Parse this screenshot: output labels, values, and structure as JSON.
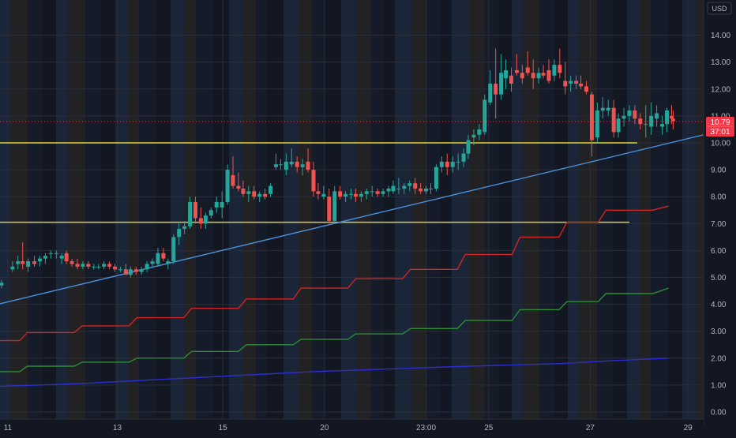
{
  "currency_label": "USD",
  "price_badge": {
    "price": "10.79",
    "countdown": "37:01",
    "color": "#f23645"
  },
  "colors": {
    "background": "#131722",
    "up": "#26a69a",
    "down": "#ef5350",
    "support": "#e3d936",
    "trend": "#4a90d9",
    "band_red": "#d12525",
    "band_green": "#2e8b3a",
    "band_blue": "#2b2fd0",
    "axis_text": "#b2b5be"
  },
  "chart_data": {
    "type": "candlestick",
    "ylim": [
      -0.25,
      14.85
    ],
    "xlim": [
      0.0,
      86.0
    ],
    "y_ticks": [
      "0.00",
      "1.00",
      "2.00",
      "3.00",
      "4.00",
      "5.00",
      "6.00",
      "7.00",
      "8.00",
      "9.00",
      "10.00",
      "11.00",
      "12.00",
      "13.00",
      "14.00"
    ],
    "x_ticks": [
      {
        "x": 1,
        "label": "11"
      },
      {
        "x": 15,
        "label": "13"
      },
      {
        "x": 28.5,
        "label": "15"
      },
      {
        "x": 41.5,
        "label": "20"
      },
      {
        "x": 54.5,
        "label": "23:00"
      },
      {
        "x": 62.5,
        "label": "25"
      },
      {
        "x": 75.5,
        "label": "27"
      },
      {
        "x": 88,
        "label": "29"
      }
    ],
    "candles": [
      [
        0.2,
        4.7,
        4.9,
        4.6,
        4.8
      ],
      [
        1.6,
        5.3,
        5.6,
        5.2,
        5.4
      ],
      [
        2.3,
        5.5,
        5.8,
        5.3,
        5.6
      ],
      [
        2.9,
        5.6,
        6.3,
        5.3,
        5.5
      ],
      [
        3.6,
        5.4,
        5.7,
        5.2,
        5.6
      ],
      [
        4.4,
        5.6,
        5.8,
        5.4,
        5.5
      ],
      [
        5.1,
        5.6,
        5.8,
        5.4,
        5.7
      ],
      [
        5.8,
        5.7,
        5.9,
        5.5,
        5.8
      ],
      [
        6.5,
        5.9,
        6.0,
        5.7,
        5.9
      ],
      [
        7.2,
        5.9,
        6.0,
        5.7,
        5.9
      ],
      [
        7.9,
        5.7,
        5.9,
        5.5,
        5.8
      ],
      [
        8.5,
        5.9,
        6.0,
        5.5,
        5.6
      ],
      [
        9.2,
        5.6,
        5.7,
        5.4,
        5.5
      ],
      [
        9.9,
        5.5,
        5.7,
        5.3,
        5.4
      ],
      [
        10.6,
        5.4,
        5.6,
        5.3,
        5.5
      ],
      [
        11.3,
        5.5,
        5.6,
        5.3,
        5.4
      ],
      [
        12.0,
        5.4,
        5.5,
        5.3,
        5.4
      ],
      [
        12.6,
        5.4,
        5.5,
        5.3,
        5.4
      ],
      [
        13.3,
        5.4,
        5.6,
        5.3,
        5.5
      ],
      [
        14.0,
        5.5,
        5.6,
        5.3,
        5.4
      ],
      [
        14.7,
        5.4,
        5.5,
        5.2,
        5.3
      ],
      [
        15.4,
        5.3,
        5.4,
        5.2,
        5.3
      ],
      [
        16.1,
        5.3,
        5.5,
        5.1,
        5.1
      ],
      [
        16.7,
        5.1,
        5.4,
        5.0,
        5.3
      ],
      [
        17.4,
        5.3,
        5.4,
        5.1,
        5.2
      ],
      [
        18.1,
        5.2,
        5.4,
        5.1,
        5.3
      ],
      [
        18.8,
        5.3,
        5.6,
        5.2,
        5.5
      ],
      [
        19.5,
        5.5,
        5.7,
        5.4,
        5.6
      ],
      [
        20.2,
        5.5,
        6.1,
        5.4,
        5.9
      ],
      [
        20.9,
        5.9,
        6.1,
        5.6,
        5.7
      ],
      [
        21.5,
        5.5,
        5.7,
        5.3,
        5.6
      ],
      [
        22.2,
        5.6,
        6.6,
        5.5,
        6.5
      ],
      [
        22.9,
        6.5,
        7.0,
        6.2,
        6.8
      ],
      [
        23.6,
        6.8,
        7.1,
        6.6,
        6.9
      ],
      [
        24.3,
        6.9,
        8.0,
        6.8,
        7.8
      ],
      [
        25.0,
        7.8,
        8.0,
        7.0,
        7.2
      ],
      [
        25.7,
        7.2,
        7.6,
        6.8,
        7.0
      ],
      [
        26.3,
        7.0,
        7.4,
        6.8,
        7.3
      ],
      [
        27.0,
        7.3,
        7.6,
        7.2,
        7.5
      ],
      [
        27.7,
        7.6,
        8.0,
        7.4,
        7.8
      ],
      [
        28.4,
        7.6,
        8.2,
        7.2,
        7.8
      ],
      [
        29.1,
        7.8,
        9.2,
        7.7,
        9.0
      ],
      [
        29.8,
        8.8,
        9.5,
        8.3,
        8.4
      ],
      [
        30.5,
        8.4,
        8.9,
        8.2,
        8.3
      ],
      [
        31.1,
        8.3,
        8.6,
        8.0,
        8.1
      ],
      [
        31.8,
        8.1,
        8.4,
        7.8,
        8.2
      ],
      [
        32.5,
        8.2,
        8.4,
        7.9,
        8.0
      ],
      [
        33.2,
        8.0,
        8.2,
        7.8,
        8.1
      ],
      [
        33.9,
        8.1,
        8.3,
        7.9,
        8.0
      ],
      [
        34.6,
        8.1,
        8.5,
        8.0,
        8.4
      ],
      [
        35.3,
        9.1,
        9.6,
        9.0,
        9.2
      ],
      [
        35.9,
        9.2,
        9.4,
        9.0,
        9.2
      ],
      [
        36.6,
        9.0,
        9.6,
        8.8,
        9.3
      ],
      [
        37.3,
        9.2,
        9.8,
        9.1,
        9.3
      ],
      [
        38.0,
        9.3,
        9.5,
        8.9,
        9.1
      ],
      [
        38.7,
        9.1,
        9.4,
        8.8,
        9.2
      ],
      [
        39.4,
        9.3,
        9.8,
        8.9,
        9.0
      ],
      [
        40.1,
        9.0,
        9.3,
        8.0,
        8.2
      ],
      [
        40.7,
        8.2,
        8.5,
        7.9,
        8.1
      ],
      [
        41.4,
        8.0,
        8.4,
        7.9,
        8.1
      ],
      [
        42.1,
        8.0,
        8.3,
        7.0,
        7.1
      ],
      [
        42.8,
        7.1,
        8.4,
        7.0,
        8.2
      ],
      [
        43.5,
        8.2,
        8.4,
        7.9,
        8.0
      ],
      [
        44.2,
        8.0,
        8.2,
        7.8,
        8.1
      ],
      [
        44.9,
        8.1,
        8.3,
        7.9,
        8.1
      ],
      [
        45.5,
        8.1,
        8.3,
        7.8,
        8.0
      ],
      [
        46.2,
        8.0,
        8.2,
        7.8,
        8.1
      ],
      [
        46.9,
        8.1,
        8.3,
        7.9,
        8.2
      ],
      [
        47.6,
        8.2,
        8.4,
        8.0,
        8.2
      ],
      [
        48.3,
        8.2,
        8.3,
        8.0,
        8.1
      ],
      [
        49.0,
        8.1,
        8.3,
        8.0,
        8.2
      ],
      [
        49.7,
        8.2,
        8.4,
        8.0,
        8.3
      ],
      [
        50.3,
        8.2,
        8.6,
        8.1,
        8.4
      ],
      [
        51.0,
        8.3,
        8.7,
        8.1,
        8.3
      ],
      [
        51.7,
        8.3,
        8.5,
        8.1,
        8.4
      ],
      [
        52.4,
        8.4,
        8.6,
        8.2,
        8.5
      ],
      [
        53.1,
        8.5,
        8.7,
        8.1,
        8.3
      ],
      [
        53.8,
        8.3,
        8.5,
        8.1,
        8.2
      ],
      [
        54.5,
        8.2,
        8.4,
        8.1,
        8.3
      ],
      [
        55.1,
        8.3,
        8.5,
        8.1,
        8.3
      ],
      [
        55.8,
        8.3,
        9.2,
        8.2,
        9.1
      ],
      [
        56.5,
        9.1,
        9.5,
        8.9,
        9.3
      ],
      [
        57.2,
        9.3,
        9.6,
        8.8,
        9.1
      ],
      [
        57.9,
        9.1,
        9.5,
        8.9,
        9.3
      ],
      [
        58.6,
        9.3,
        9.6,
        9.0,
        9.3
      ],
      [
        59.3,
        9.3,
        9.8,
        9.1,
        9.6
      ],
      [
        59.9,
        9.6,
        10.3,
        9.4,
        10.1
      ],
      [
        60.6,
        10.2,
        10.5,
        9.9,
        10.3
      ],
      [
        61.3,
        10.3,
        10.7,
        10.1,
        10.5
      ],
      [
        62.0,
        10.4,
        11.8,
        10.3,
        11.6
      ],
      [
        62.7,
        11.5,
        12.7,
        11.4,
        12.2
      ],
      [
        63.4,
        12.2,
        13.5,
        10.9,
        11.8
      ],
      [
        64.1,
        11.8,
        13.3,
        11.6,
        12.6
      ],
      [
        64.7,
        12.4,
        13.1,
        12.0,
        12.7
      ],
      [
        65.4,
        12.5,
        12.8,
        11.9,
        12.2
      ],
      [
        66.1,
        12.7,
        13.3,
        12.5,
        12.6
      ],
      [
        66.8,
        12.6,
        12.9,
        12.2,
        12.4
      ],
      [
        67.5,
        12.8,
        13.4,
        12.5,
        12.6
      ],
      [
        68.2,
        12.6,
        13.1,
        12.0,
        12.4
      ],
      [
        68.9,
        12.4,
        12.8,
        12.2,
        12.6
      ],
      [
        69.5,
        12.6,
        12.9,
        12.4,
        12.5
      ],
      [
        70.2,
        12.7,
        13.1,
        12.2,
        12.3
      ],
      [
        70.9,
        12.5,
        13.1,
        12.3,
        12.9
      ],
      [
        71.6,
        12.9,
        13.5,
        12.4,
        12.6
      ],
      [
        72.3,
        12.3,
        13.0,
        11.8,
        12.1
      ],
      [
        73.0,
        12.2,
        12.5,
        11.9,
        12.3
      ],
      [
        73.7,
        12.3,
        12.5,
        12.0,
        12.2
      ],
      [
        74.3,
        12.2,
        12.5,
        12.0,
        12.1
      ],
      [
        75.0,
        12.1,
        12.3,
        11.8,
        11.9
      ],
      [
        75.7,
        11.8,
        11.9,
        9.5,
        10.1
      ],
      [
        76.4,
        10.2,
        11.5,
        10.0,
        11.2
      ],
      [
        77.1,
        11.2,
        11.7,
        10.9,
        11.3
      ],
      [
        77.8,
        11.2,
        11.6,
        11.0,
        11.3
      ],
      [
        78.5,
        11.3,
        11.6,
        10.2,
        10.4
      ],
      [
        79.1,
        10.4,
        11.1,
        10.2,
        10.9
      ],
      [
        79.8,
        10.9,
        11.3,
        10.6,
        11.0
      ],
      [
        80.5,
        11.0,
        11.4,
        10.8,
        11.2
      ],
      [
        81.2,
        11.2,
        11.4,
        10.7,
        10.9
      ],
      [
        81.9,
        10.9,
        11.1,
        10.5,
        10.7
      ],
      [
        82.6,
        10.7,
        11.4,
        10.2,
        10.7
      ],
      [
        83.3,
        10.6,
        11.5,
        10.3,
        11.0
      ],
      [
        84.0,
        10.9,
        11.4,
        10.6,
        11.1
      ],
      [
        84.7,
        10.6,
        11.0,
        10.3,
        10.7
      ],
      [
        85.3,
        10.7,
        11.3,
        10.4,
        11.2
      ],
      [
        85.9,
        11.0,
        11.4,
        10.7,
        10.9
      ],
      [
        86.1,
        10.9,
        11.2,
        10.5,
        10.8
      ]
    ],
    "lines": [
      {
        "name": "",
        "color": "#e3d936",
        "points": [
          [
            0,
            10.0
          ],
          [
            81.5,
            10.0
          ]
        ]
      },
      {
        "name": "",
        "color": "#e3d936",
        "points": [
          [
            0,
            7.05
          ],
          [
            80.5,
            7.05
          ]
        ]
      },
      {
        "name": "",
        "color": "#4a90d9",
        "points": [
          [
            0,
            4.02
          ],
          [
            90,
            10.3
          ]
        ]
      },
      {
        "name": "",
        "color": "#d12525",
        "points": [
          [
            0,
            2.65
          ],
          [
            2.5,
            2.65
          ],
          [
            3.5,
            2.95
          ],
          [
            9.5,
            2.95
          ],
          [
            10.5,
            3.2
          ],
          [
            16.5,
            3.2
          ],
          [
            17.5,
            3.5
          ],
          [
            23.5,
            3.5
          ],
          [
            24.5,
            3.85
          ],
          [
            30.5,
            3.85
          ],
          [
            31.5,
            4.2
          ],
          [
            37.5,
            4.2
          ],
          [
            38.5,
            4.6
          ],
          [
            44.5,
            4.6
          ],
          [
            45.5,
            4.95
          ],
          [
            51.5,
            4.95
          ],
          [
            52.5,
            5.3
          ],
          [
            58.5,
            5.3
          ],
          [
            59.5,
            5.85
          ],
          [
            65.5,
            5.85
          ],
          [
            66.5,
            6.5
          ],
          [
            71.5,
            6.5
          ],
          [
            72.5,
            7.05
          ],
          [
            76.5,
            7.05
          ],
          [
            77.5,
            7.5
          ],
          [
            83.5,
            7.5
          ],
          [
            85.5,
            7.65
          ]
        ]
      },
      {
        "name": "",
        "color": "#2e8b3a",
        "points": [
          [
            0,
            1.5
          ],
          [
            2.5,
            1.5
          ],
          [
            3.5,
            1.7
          ],
          [
            9.5,
            1.7
          ],
          [
            10.5,
            1.85
          ],
          [
            16.5,
            1.85
          ],
          [
            17.5,
            2.0
          ],
          [
            23.5,
            2.0
          ],
          [
            24.5,
            2.25
          ],
          [
            30.5,
            2.25
          ],
          [
            31.5,
            2.5
          ],
          [
            37.5,
            2.5
          ],
          [
            38.5,
            2.7
          ],
          [
            44.5,
            2.7
          ],
          [
            45.5,
            2.9
          ],
          [
            51.5,
            2.9
          ],
          [
            52.5,
            3.1
          ],
          [
            58.5,
            3.1
          ],
          [
            59.5,
            3.4
          ],
          [
            65.5,
            3.4
          ],
          [
            66.5,
            3.8
          ],
          [
            71.5,
            3.8
          ],
          [
            72.5,
            4.1
          ],
          [
            76.5,
            4.1
          ],
          [
            77.5,
            4.4
          ],
          [
            83.5,
            4.4
          ],
          [
            85.5,
            4.6
          ]
        ]
      },
      {
        "name": "",
        "color": "#2b2fd0",
        "points": [
          [
            0,
            0.95
          ],
          [
            10,
            1.05
          ],
          [
            20,
            1.2
          ],
          [
            30,
            1.35
          ],
          [
            40,
            1.5
          ],
          [
            50,
            1.6
          ],
          [
            60,
            1.7
          ],
          [
            66,
            1.75
          ],
          [
            72,
            1.8
          ],
          [
            78,
            1.9
          ],
          [
            85.5,
            2.0
          ]
        ]
      }
    ],
    "last_price": 10.79,
    "grid": true
  }
}
